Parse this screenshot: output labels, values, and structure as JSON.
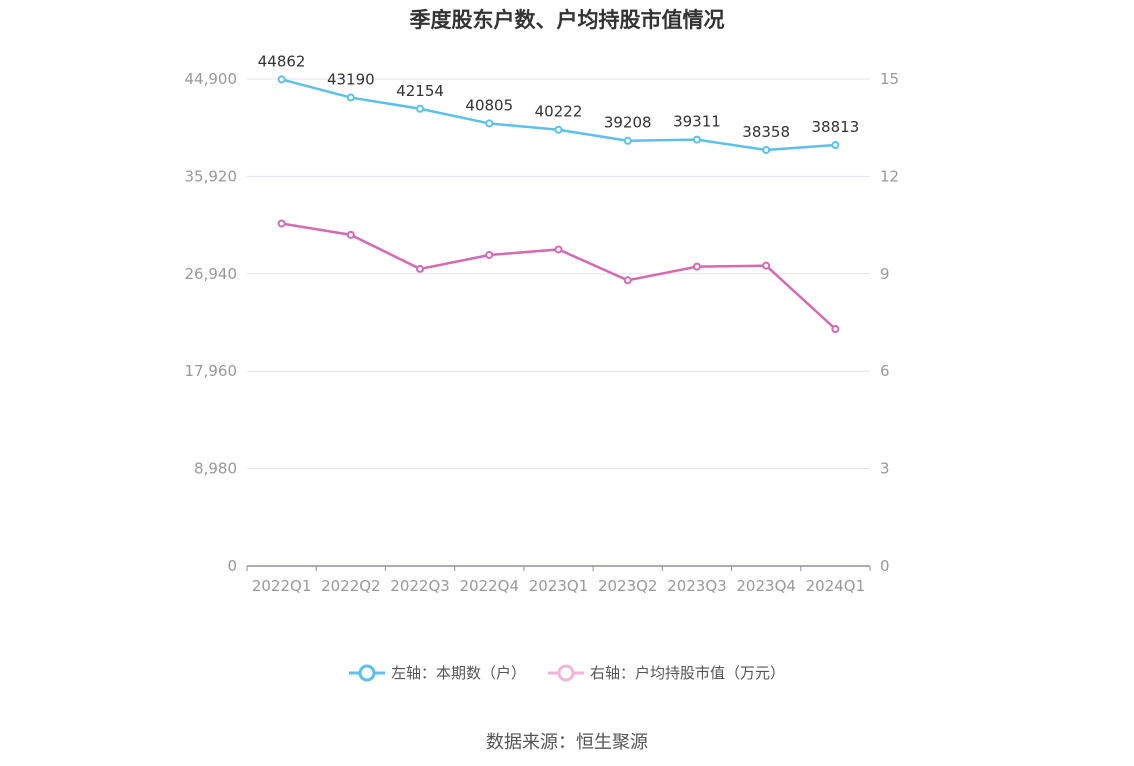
{
  "chart_data": {
    "type": "line",
    "title": "季度股东户数、户均持股市值情况",
    "categories": [
      "2022Q1",
      "2022Q2",
      "2022Q3",
      "2022Q4",
      "2023Q1",
      "2023Q2",
      "2023Q3",
      "2023Q4",
      "2024Q1"
    ],
    "left_axis": {
      "ticks": [
        "0",
        "8,980",
        "17,960",
        "26,940",
        "35,920",
        "44,900"
      ],
      "ylim": [
        0,
        44900
      ]
    },
    "right_axis": {
      "ticks": [
        "0",
        "3",
        "6",
        "9",
        "12",
        "15"
      ],
      "ylim": [
        0,
        15
      ]
    },
    "series": [
      {
        "name": "左轴：本期数（户）",
        "axis": "left",
        "color": "#5bc0eb",
        "values": [
          44862,
          43190,
          42154,
          40805,
          40222,
          39208,
          39311,
          38358,
          38813
        ],
        "labels": [
          "44862",
          "43190",
          "42154",
          "40805",
          "40222",
          "39208",
          "39311",
          "38358",
          "38813"
        ]
      },
      {
        "name": "右轴：户均持股市值（万元）",
        "axis": "right",
        "color": "#d56ab1",
        "values": [
          10.55,
          10.2,
          9.15,
          9.58,
          9.75,
          8.8,
          9.22,
          9.25,
          7.3
        ]
      }
    ],
    "grid": true,
    "legend_position": "bottom"
  },
  "source": "数据来源：恒生聚源"
}
